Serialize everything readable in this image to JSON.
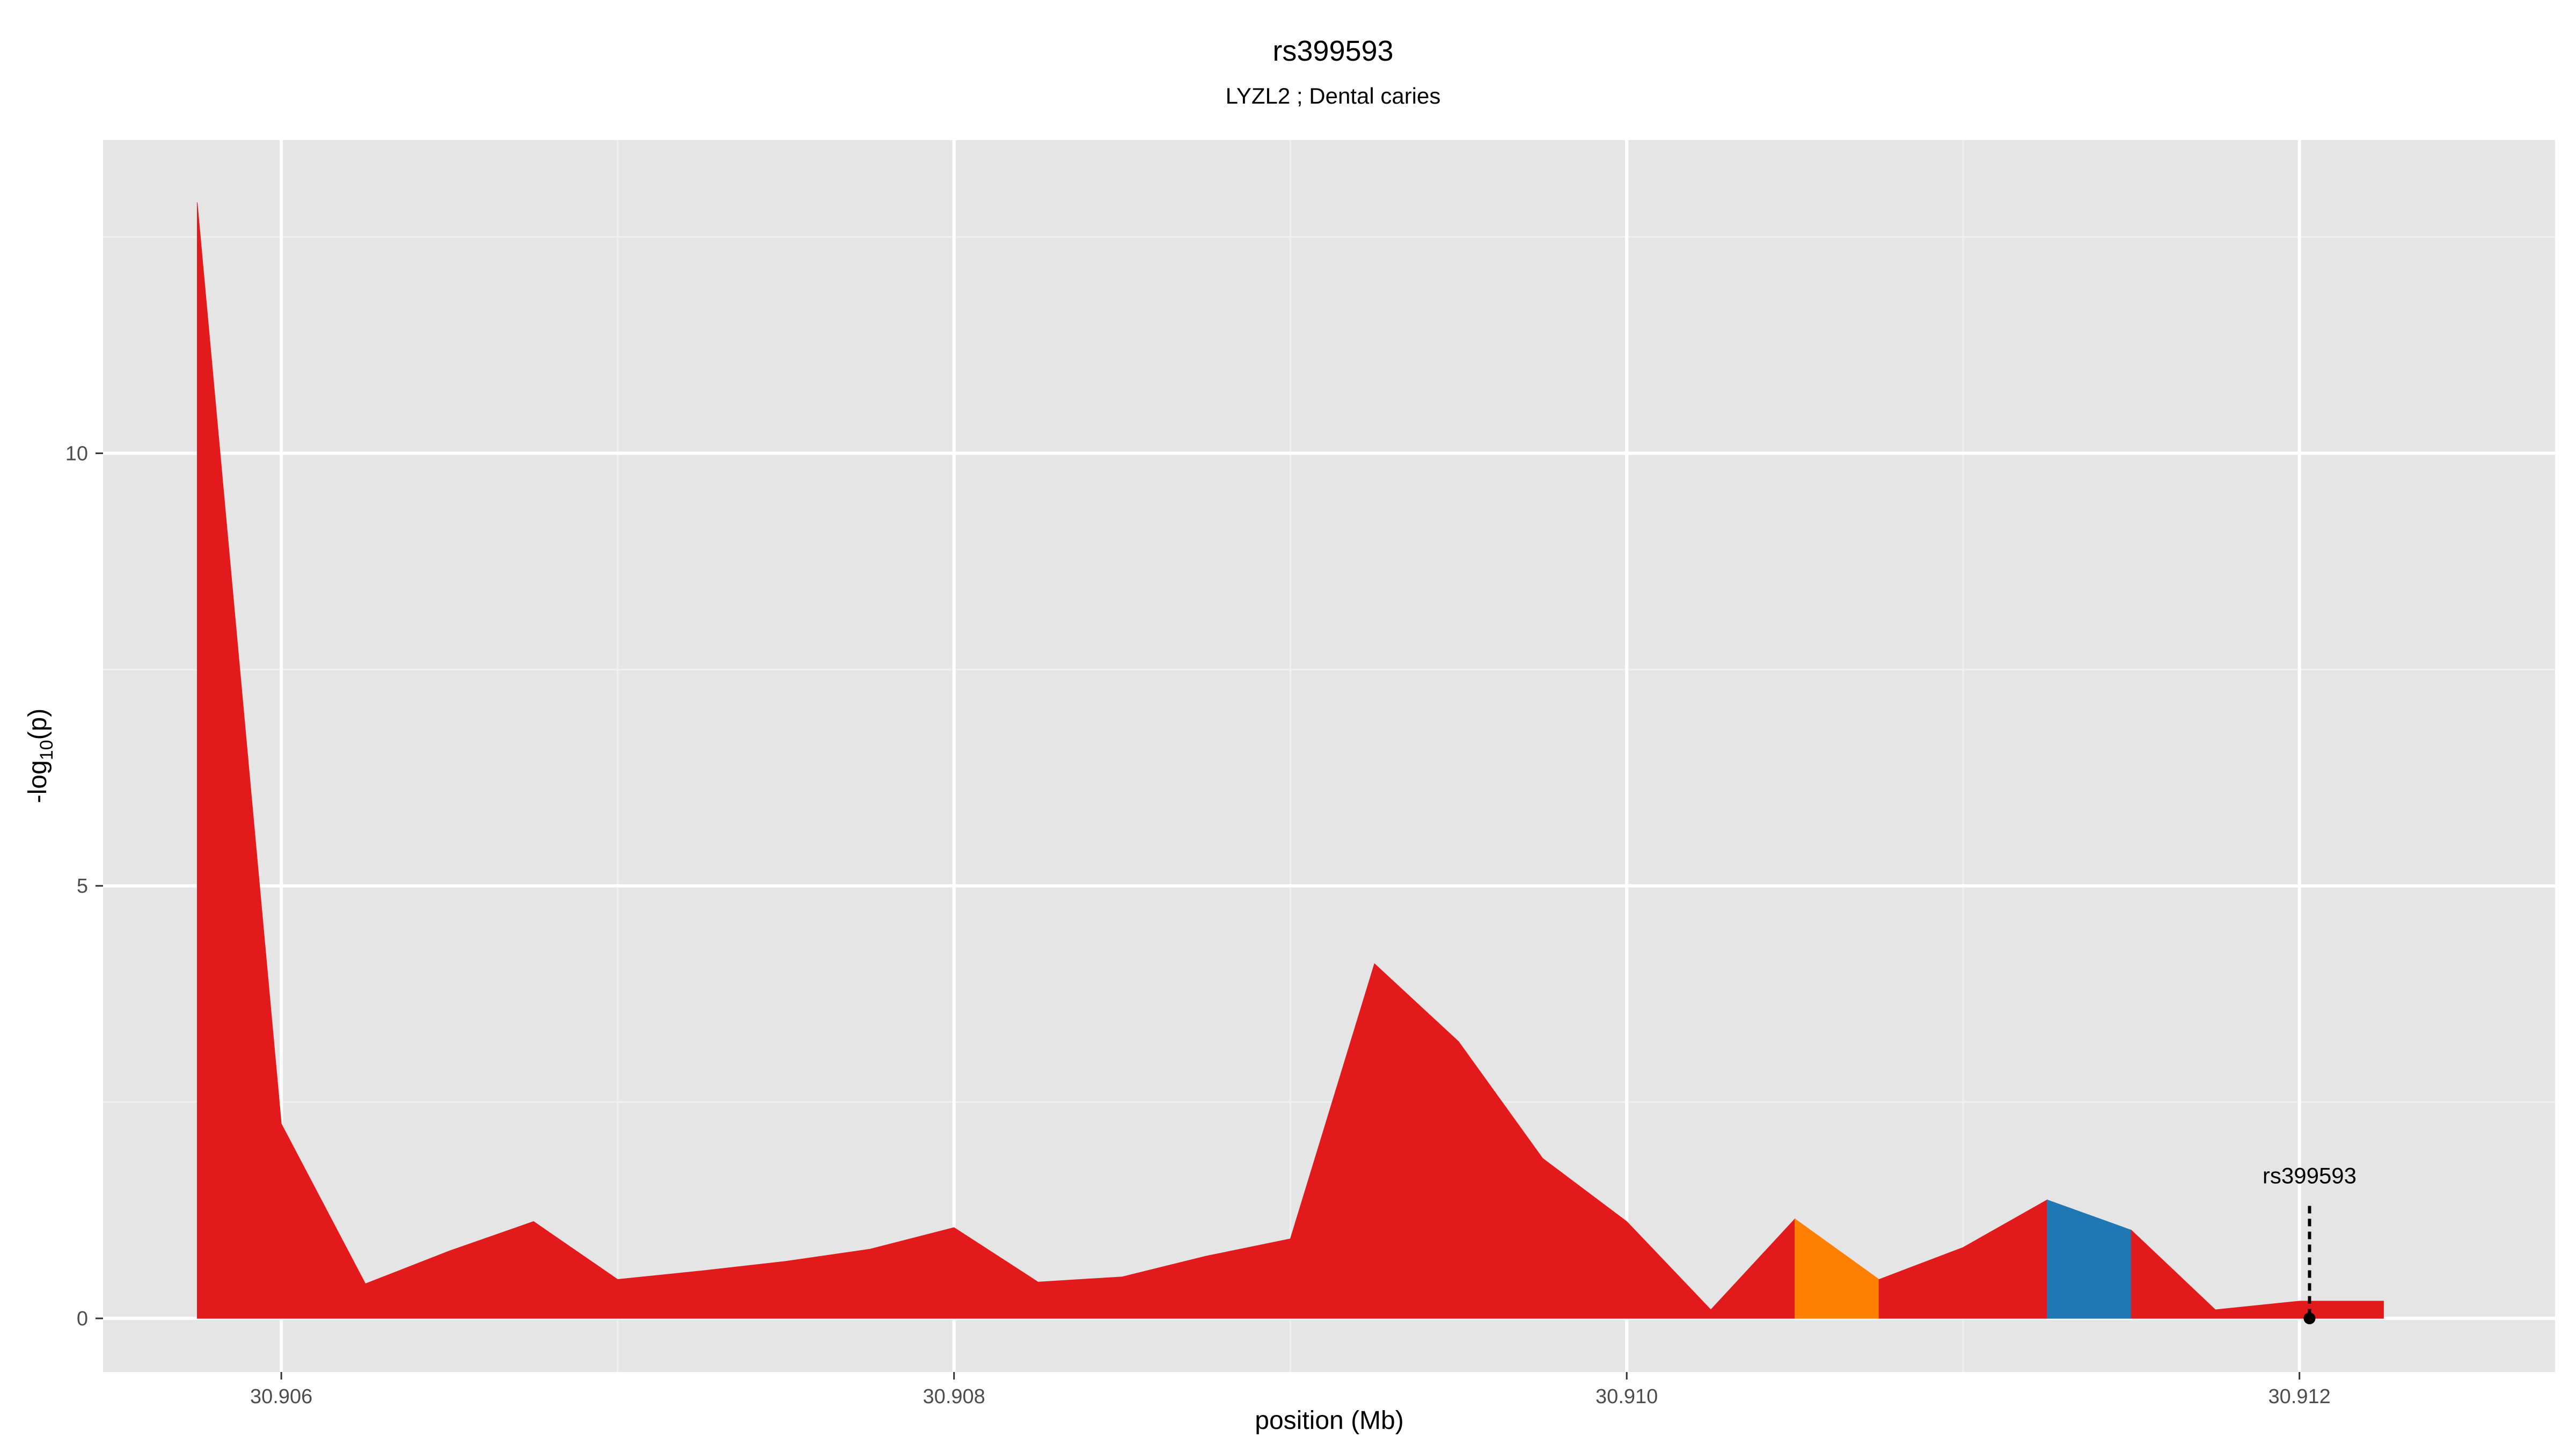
{
  "chart_data": {
    "type": "area",
    "title": "rs399593",
    "subtitle": "LYZL2 ; Dental caries",
    "xlabel": "position (Mb)",
    "ylabel_main": "-log",
    "ylabel_sub": "10",
    "ylabel_end": "(p)",
    "xlim": [
      30.90547,
      30.91276
    ],
    "ylim": [
      -0.62,
      13.62
    ],
    "x_ticks": [
      30.906,
      30.908,
      30.91,
      30.912
    ],
    "x_tick_labels": [
      "30.906",
      "30.908",
      "30.910",
      "30.912"
    ],
    "y_ticks": [
      0,
      5,
      10
    ],
    "y_tick_labels": [
      "0",
      "5",
      "10"
    ],
    "grid": true,
    "background_color": "#e5e5e5",
    "grid_major_color": "#ffffff",
    "grid_minor_color": "#f0f0f0",
    "tick_label_color": "#4d4d4d",
    "series": [
      {
        "color": "#e31a1c",
        "points": [
          [
            30.90575,
            12.9
          ],
          [
            30.906,
            2.25
          ],
          [
            30.90625,
            0.4
          ],
          [
            30.9065,
            0.78
          ],
          [
            30.90675,
            1.12
          ],
          [
            30.907,
            0.45
          ],
          [
            30.90725,
            0.55
          ],
          [
            30.9075,
            0.66
          ],
          [
            30.90775,
            0.8
          ],
          [
            30.908,
            1.05
          ],
          [
            30.90825,
            0.42
          ],
          [
            30.9085,
            0.48
          ],
          [
            30.90875,
            0.72
          ],
          [
            30.909,
            0.92
          ],
          [
            30.90925,
            4.1
          ],
          [
            30.9095,
            3.2
          ],
          [
            30.90975,
            1.85
          ],
          [
            30.91,
            1.12
          ],
          [
            30.91025,
            0.1
          ],
          [
            30.9105,
            1.15
          ]
        ]
      },
      {
        "color": "#ff7f00",
        "points": [
          [
            30.9105,
            1.15
          ],
          [
            30.91075,
            0.45
          ]
        ]
      },
      {
        "color": "#e31a1c",
        "points": [
          [
            30.91075,
            0.45
          ],
          [
            30.911,
            0.82
          ],
          [
            30.91125,
            1.37
          ]
        ]
      },
      {
        "color": "#1f78b4",
        "points": [
          [
            30.91125,
            1.37
          ],
          [
            30.9115,
            1.02
          ]
        ]
      },
      {
        "color": "#e31a1c",
        "points": [
          [
            30.9115,
            1.02
          ],
          [
            30.91175,
            0.1
          ],
          [
            30.912,
            0.2
          ],
          [
            30.91225,
            0.2
          ]
        ]
      }
    ],
    "annotation": {
      "label": "rs399593",
      "x": 30.91203,
      "y": 0,
      "line_top": 1.3,
      "color": "#000000"
    }
  }
}
